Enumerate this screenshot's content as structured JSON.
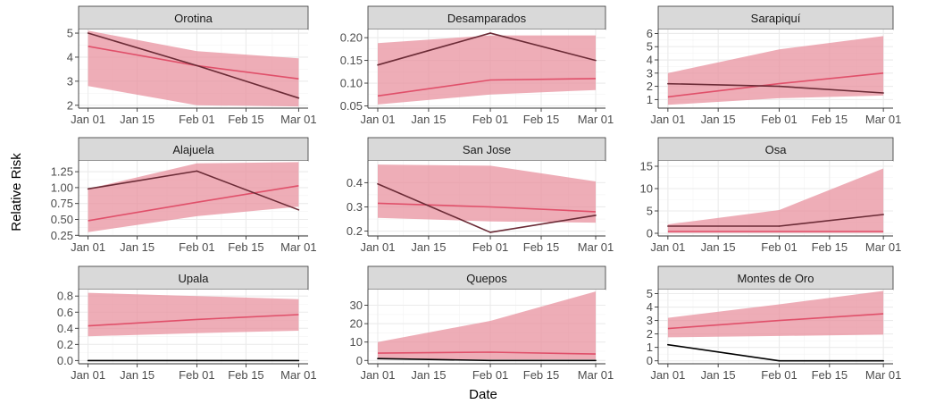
{
  "colors": {
    "ribbon": "#e8919f",
    "predicted": "#e0506a",
    "observed": "#6b2b36",
    "observed_zero": "#000000",
    "strip_bg": "#d9d9d9",
    "grid": "#ebebeb"
  },
  "chart_data": {
    "type": "line",
    "xlabel": "Date",
    "ylabel": "Relative Risk",
    "x": [
      "2024-01-01",
      "2024-02-01",
      "2024-03-01"
    ],
    "x_ticks": [
      {
        "date": "2024-01-01",
        "label": "Jan 01"
      },
      {
        "date": "2024-01-15",
        "label": "Jan 15"
      },
      {
        "date": "2024-02-01",
        "label": "Feb 01"
      },
      {
        "date": "2024-02-15",
        "label": "Feb 15"
      },
      {
        "date": "2024-03-01",
        "label": "Mar 01"
      }
    ],
    "facets": [
      {
        "title": "Orotina",
        "ylim": [
          1.88,
          5.15
        ],
        "yticks": [
          {
            "v": 2,
            "label": "2"
          },
          {
            "v": 3,
            "label": "3"
          },
          {
            "v": 4,
            "label": "4"
          },
          {
            "v": 5,
            "label": "5"
          }
        ],
        "lower": [
          2.8,
          2.0,
          1.95
        ],
        "upper": [
          5.1,
          4.25,
          3.95
        ],
        "predicted": [
          4.45,
          3.65,
          3.1
        ],
        "observed": [
          5.0,
          3.65,
          2.3
        ]
      },
      {
        "title": "Desamparados",
        "ylim": [
          0.045,
          0.218
        ],
        "yticks": [
          {
            "v": 0.05,
            "label": "0.05"
          },
          {
            "v": 0.1,
            "label": "0.10"
          },
          {
            "v": 0.15,
            "label": "0.15"
          },
          {
            "v": 0.2,
            "label": "0.20"
          }
        ],
        "lower": [
          0.053,
          0.075,
          0.085
        ],
        "upper": [
          0.188,
          0.205,
          0.205
        ],
        "predicted": [
          0.072,
          0.107,
          0.11
        ],
        "observed": [
          0.14,
          0.21,
          0.15
        ]
      },
      {
        "title": "Sarapiquí",
        "ylim": [
          0.35,
          6.3
        ],
        "yticks": [
          {
            "v": 1,
            "label": "1"
          },
          {
            "v": 2,
            "label": "2"
          },
          {
            "v": 3,
            "label": "3"
          },
          {
            "v": 4,
            "label": "4"
          },
          {
            "v": 5,
            "label": "5"
          },
          {
            "v": 6,
            "label": "6"
          }
        ],
        "lower": [
          0.6,
          1.1,
          1.3
        ],
        "upper": [
          3.0,
          4.8,
          5.8
        ],
        "predicted": [
          1.2,
          2.2,
          3.0
        ],
        "observed": [
          2.2,
          2.0,
          1.5
        ]
      },
      {
        "title": "Alajuela",
        "ylim": [
          0.24,
          1.42
        ],
        "yticks": [
          {
            "v": 0.25,
            "label": "0.25"
          },
          {
            "v": 0.5,
            "label": "0.50"
          },
          {
            "v": 0.75,
            "label": "0.75"
          },
          {
            "v": 1.0,
            "label": "1.00"
          },
          {
            "v": 1.25,
            "label": "1.25"
          }
        ],
        "lower": [
          0.3,
          0.55,
          0.7
        ],
        "upper": [
          0.98,
          1.38,
          1.4
        ],
        "predicted": [
          0.48,
          0.77,
          1.03
        ],
        "observed": [
          0.98,
          1.26,
          0.65
        ]
      },
      {
        "title": "San Jose",
        "ylim": [
          0.18,
          0.49
        ],
        "yticks": [
          {
            "v": 0.2,
            "label": "0.2"
          },
          {
            "v": 0.3,
            "label": "0.3"
          },
          {
            "v": 0.4,
            "label": "0.4"
          }
        ],
        "lower": [
          0.255,
          0.24,
          0.235
        ],
        "upper": [
          0.475,
          0.47,
          0.405
        ],
        "predicted": [
          0.315,
          0.3,
          0.28
        ],
        "observed": [
          0.395,
          0.195,
          0.265
        ]
      },
      {
        "title": "Osa",
        "ylim": [
          -0.6,
          16.2
        ],
        "yticks": [
          {
            "v": 0,
            "label": "0"
          },
          {
            "v": 5,
            "label": "5"
          },
          {
            "v": 10,
            "label": "10"
          },
          {
            "v": 15,
            "label": "15"
          }
        ],
        "lower": [
          0.1,
          0.1,
          0.1
        ],
        "upper": [
          2.0,
          5.2,
          14.5
        ],
        "predicted": [
          0.4,
          0.4,
          0.4
        ],
        "observed": [
          1.6,
          1.6,
          4.2
        ]
      },
      {
        "title": "Upala",
        "ylim": [
          -0.04,
          0.88
        ],
        "yticks": [
          {
            "v": 0.0,
            "label": "0.0"
          },
          {
            "v": 0.2,
            "label": "0.2"
          },
          {
            "v": 0.4,
            "label": "0.4"
          },
          {
            "v": 0.6,
            "label": "0.6"
          },
          {
            "v": 0.8,
            "label": "0.8"
          }
        ],
        "lower": [
          0.3,
          0.34,
          0.37
        ],
        "upper": [
          0.84,
          0.8,
          0.76
        ],
        "predicted": [
          0.43,
          0.51,
          0.57
        ],
        "observed": [
          0.0,
          0.0,
          0.0
        ]
      },
      {
        "title": "Quepos",
        "ylim": [
          -1.8,
          38.5
        ],
        "yticks": [
          {
            "v": 0,
            "label": "0"
          },
          {
            "v": 10,
            "label": "10"
          },
          {
            "v": 20,
            "label": "20"
          },
          {
            "v": 30,
            "label": "30"
          }
        ],
        "lower": [
          0.6,
          0.6,
          0.6
        ],
        "upper": [
          10.0,
          21.5,
          37.5
        ],
        "predicted": [
          4.0,
          4.5,
          3.5
        ],
        "observed": [
          1.0,
          0.0,
          0.0
        ]
      },
      {
        "title": "Montes de Oro",
        "ylim": [
          -0.22,
          5.3
        ],
        "yticks": [
          {
            "v": 0,
            "label": "0"
          },
          {
            "v": 1,
            "label": "1"
          },
          {
            "v": 2,
            "label": "2"
          },
          {
            "v": 3,
            "label": "3"
          },
          {
            "v": 4,
            "label": "4"
          },
          {
            "v": 5,
            "label": "5"
          }
        ],
        "lower": [
          1.75,
          1.85,
          1.95
        ],
        "upper": [
          3.2,
          4.2,
          5.2
        ],
        "predicted": [
          2.4,
          3.0,
          3.5
        ],
        "observed": [
          1.2,
          0.0,
          0.0
        ]
      }
    ]
  }
}
